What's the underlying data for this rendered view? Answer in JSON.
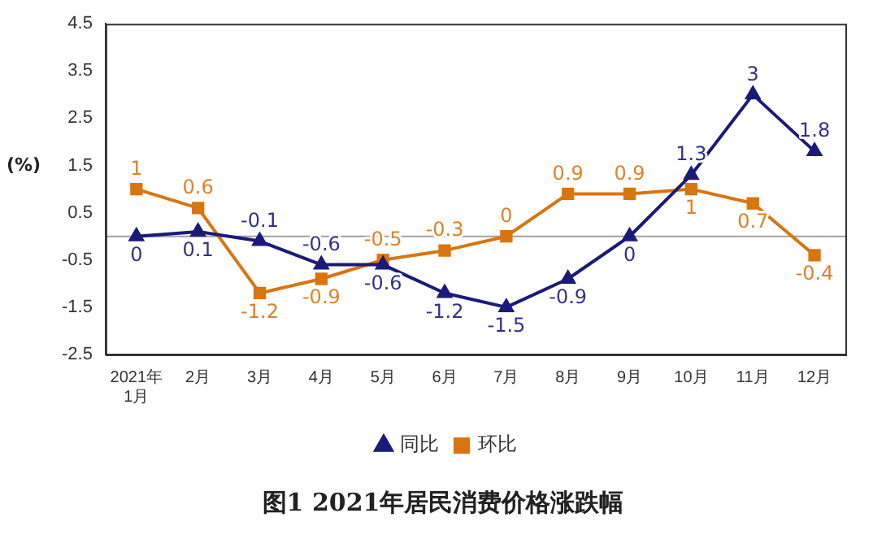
{
  "chart_data": {
    "type": "line",
    "title": "图1 2021年居民消费价格涨跌幅",
    "ylabel": "(%)",
    "categories": [
      "2021年\n1月",
      "2月",
      "3月",
      "4月",
      "5月",
      "6月",
      "7月",
      "8月",
      "9月",
      "10月",
      "11月",
      "12月"
    ],
    "series": [
      {
        "name": "同比",
        "color": "#1a1a7a",
        "marker": "triangle",
        "values": [
          0,
          0.1,
          -0.1,
          -0.6,
          -0.6,
          -1.2,
          -1.5,
          -0.9,
          0,
          1.3,
          3,
          1.8
        ]
      },
      {
        "name": "环比",
        "color": "#d9750f",
        "marker": "square",
        "values": [
          1,
          0.6,
          -1.2,
          -0.9,
          -0.5,
          -0.3,
          0,
          0.9,
          0.9,
          1,
          0.7,
          -0.4
        ]
      }
    ],
    "ylim": [
      -2.5,
      4.5
    ],
    "yticks": [
      -2.5,
      -1.5,
      -0.5,
      0.5,
      1.5,
      2.5,
      3.5,
      4.5
    ],
    "ref_lines": [
      {
        "axis": "y",
        "value": 0,
        "color": "#a0a0a0"
      }
    ],
    "grid": false,
    "legend": "bottom",
    "data_labels": true,
    "line_style": "solid"
  }
}
